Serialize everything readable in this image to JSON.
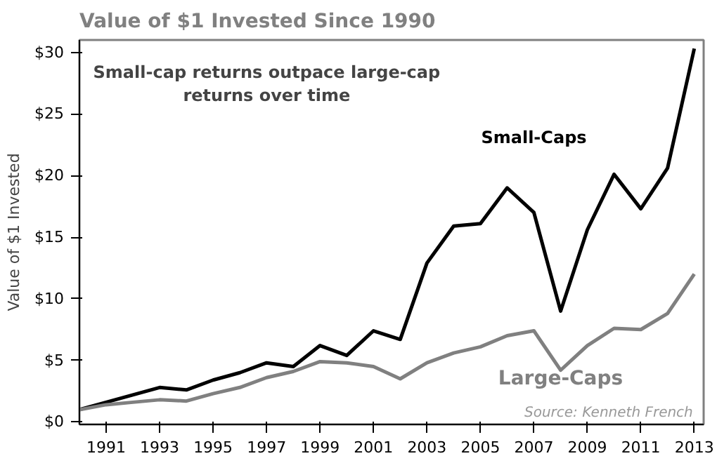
{
  "chart_data": {
    "type": "line",
    "title": "Value of $1 Invested Since 1990",
    "ylabel": "Value of $1 Invested",
    "annotations": [
      "Small-cap returns outpace large-cap\nreturns over time",
      "Source: Kenneth French"
    ],
    "x": [
      1990,
      1991,
      1992,
      1993,
      1994,
      1995,
      1996,
      1997,
      1998,
      1999,
      2000,
      2001,
      2002,
      2003,
      2004,
      2005,
      2006,
      2007,
      2008,
      2009,
      2010,
      2011,
      2012,
      2013
    ],
    "series": [
      {
        "name": "Small-Caps",
        "color": "#000000",
        "values": [
          1,
          1.6,
          2.2,
          2.8,
          2.6,
          3.4,
          4.0,
          4.8,
          4.5,
          6.2,
          5.4,
          7.4,
          6.7,
          12.9,
          15.9,
          16.1,
          19.0,
          17.0,
          9.0,
          15.6,
          20.1,
          17.3,
          20.6,
          30.3
        ]
      },
      {
        "name": "Large-Caps",
        "color": "#808080",
        "values": [
          1,
          1.4,
          1.6,
          1.8,
          1.7,
          2.3,
          2.8,
          3.6,
          4.1,
          4.9,
          4.8,
          4.5,
          3.5,
          4.8,
          5.6,
          6.1,
          7.0,
          7.4,
          4.2,
          6.2,
          7.6,
          7.5,
          8.8,
          12.0
        ]
      }
    ],
    "xlim": [
      1990,
      2013.35
    ],
    "ylim": [
      -0.2,
      31
    ],
    "xticks": [
      1991,
      1993,
      1995,
      1997,
      1999,
      2001,
      2003,
      2005,
      2007,
      2009,
      2011,
      2013
    ],
    "yticks": [
      {
        "value": 0,
        "label": "$0"
      },
      {
        "value": 5,
        "label": "$5"
      },
      {
        "value": 10,
        "label": "$10"
      },
      {
        "value": 15,
        "label": "$15"
      },
      {
        "value": 20,
        "label": "$20"
      },
      {
        "value": 25,
        "label": "$25"
      },
      {
        "value": 30,
        "label": "$30"
      }
    ],
    "grid": false,
    "marker": "none",
    "line_style": "solid"
  }
}
